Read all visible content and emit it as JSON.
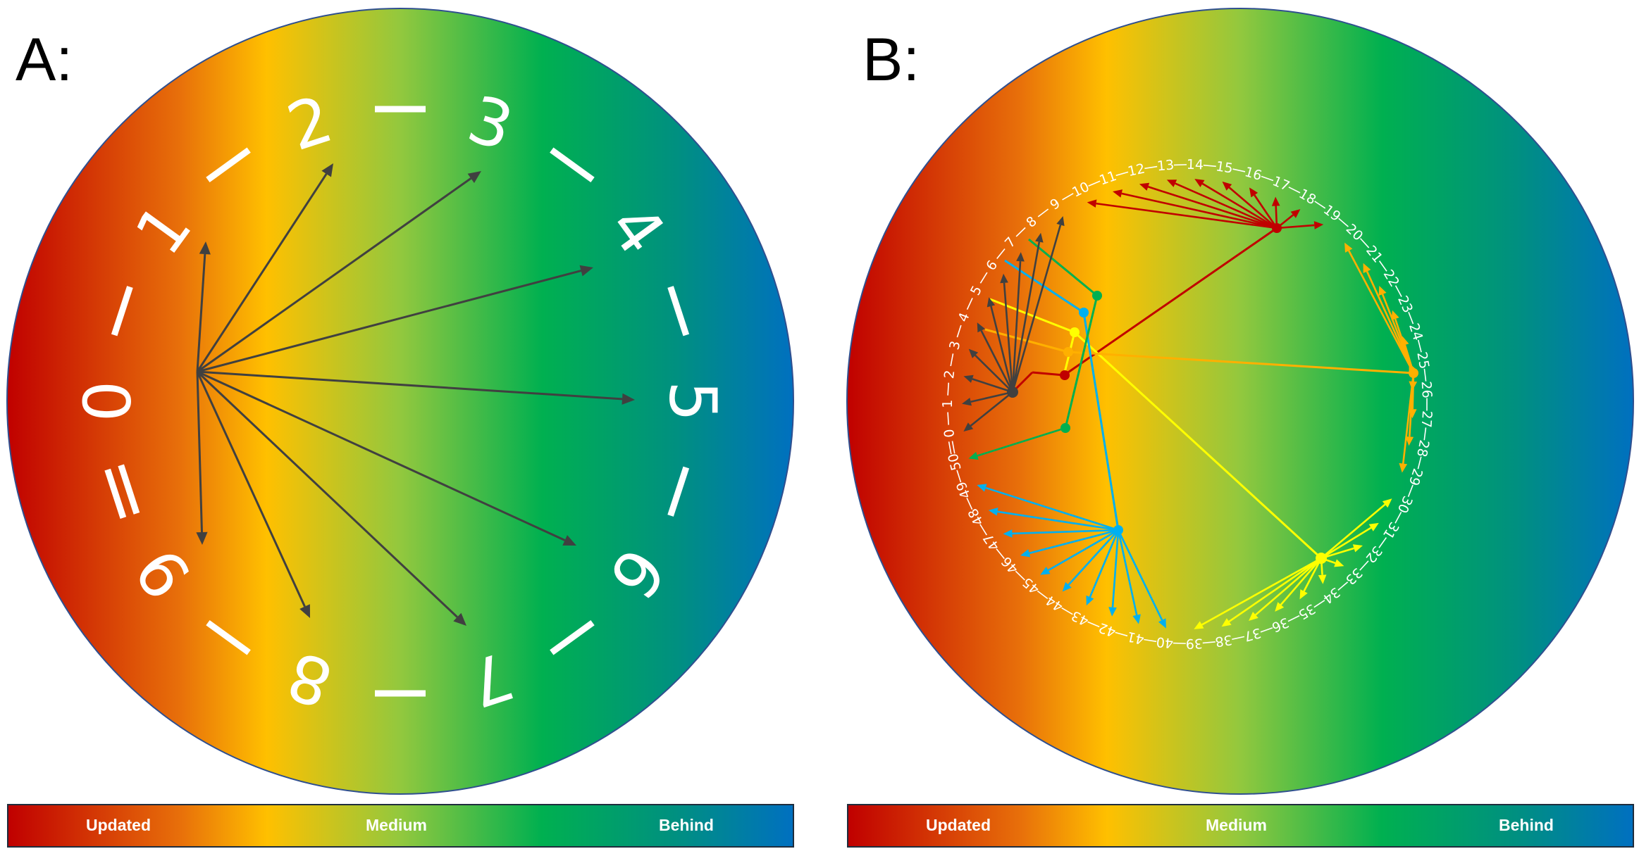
{
  "panel_a": {
    "label": "A:",
    "ring_labels": [
      "0",
      "1",
      "2",
      "3",
      "4",
      "5",
      "6",
      "7",
      "8",
      "9"
    ],
    "arrow_color": "#404040"
  },
  "panel_b": {
    "label": "B:",
    "ring_labels": [
      "0",
      "1",
      "2",
      "3",
      "4",
      "5",
      "6",
      "7",
      "8",
      "9",
      "10",
      "11",
      "12",
      "13",
      "14",
      "15",
      "16",
      "17",
      "18",
      "19",
      "20",
      "21",
      "22",
      "23",
      "24",
      "25",
      "26",
      "27",
      "28",
      "29",
      "30",
      "31",
      "32",
      "33",
      "34",
      "35",
      "36",
      "37",
      "38",
      "39",
      "40",
      "41",
      "42",
      "43",
      "44",
      "45",
      "46",
      "47",
      "48",
      "49",
      "50"
    ],
    "groups": [
      {
        "color": "#404040",
        "targets": [
          0,
          1,
          2,
          3,
          4,
          5,
          6,
          7,
          8,
          9
        ]
      },
      {
        "color": "#c00000",
        "targets": [
          10,
          11,
          12,
          13,
          14,
          15,
          16,
          17,
          18,
          19
        ]
      },
      {
        "color": "#ffb000",
        "targets": [
          20,
          21,
          22,
          23,
          24,
          25,
          26,
          27,
          28,
          29
        ]
      },
      {
        "color": "#ffff00",
        "targets": [
          30,
          31,
          32,
          33,
          34,
          35,
          36,
          37,
          38,
          39
        ]
      },
      {
        "color": "#00b0f0",
        "targets": [
          40,
          41,
          42,
          43,
          44,
          45,
          46,
          47,
          48,
          49
        ]
      },
      {
        "color": "#00b050",
        "targets": [
          50
        ]
      }
    ]
  },
  "legend": {
    "updated": "Updated",
    "medium": "Medium",
    "behind": "Behind"
  },
  "colors": {
    "gradient": [
      "#c00000",
      "#e8700a",
      "#ffc000",
      "#92c83e",
      "#00b050",
      "#009080",
      "#0070c0"
    ],
    "circle_border": "#2f4f8f"
  }
}
